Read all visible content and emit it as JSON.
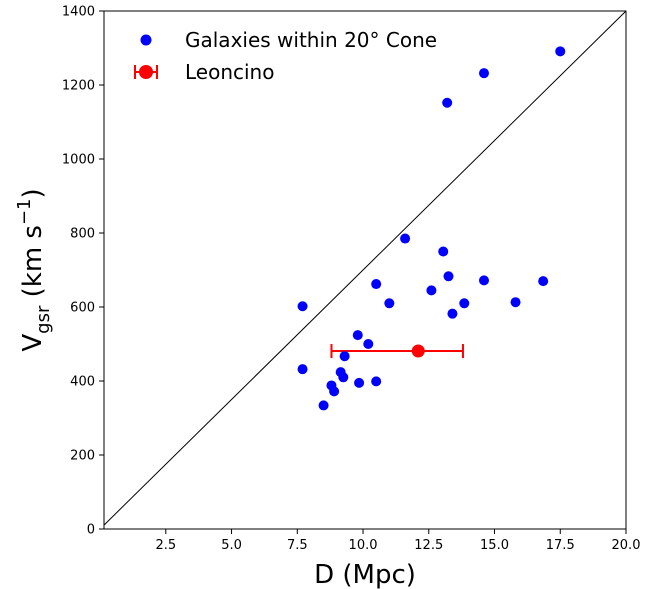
{
  "chart_data": {
    "type": "scatter",
    "xlabel": "D (Mpc)",
    "ylabel_main": "V",
    "ylabel_sub": "gsr",
    "ylabel_units": " (km s",
    "ylabel_exp": "−1",
    "ylabel_close": ")",
    "xlim": [
      0.15,
      20.0
    ],
    "ylim": [
      0,
      1400
    ],
    "xticks": [
      2.5,
      5.0,
      7.5,
      10.0,
      12.5,
      15.0,
      17.5,
      20.0
    ],
    "xtick_labels": [
      "2.5",
      "5.0",
      "7.5",
      "10.0",
      "12.5",
      "15.0",
      "17.5",
      "20.0"
    ],
    "yticks": [
      0,
      200,
      400,
      600,
      800,
      1000,
      1200,
      1400
    ],
    "ytick_labels": [
      "0",
      "200",
      "400",
      "600",
      "800",
      "1000",
      "1200",
      "1400"
    ],
    "grid": false,
    "legend_position": "top-left",
    "reference_line": {
      "from": [
        0,
        0
      ],
      "to": [
        20,
        1400
      ],
      "color": "#000000"
    },
    "series": [
      {
        "name": "Galaxies within 20° Cone",
        "color": "#0000ff",
        "points": [
          [
            7.7,
            602
          ],
          [
            7.7,
            432
          ],
          [
            8.5,
            334
          ],
          [
            8.8,
            388
          ],
          [
            8.9,
            372
          ],
          [
            9.15,
            424
          ],
          [
            9.25,
            410
          ],
          [
            9.3,
            467
          ],
          [
            9.8,
            524
          ],
          [
            9.85,
            395
          ],
          [
            10.2,
            500
          ],
          [
            10.5,
            399
          ],
          [
            10.5,
            662
          ],
          [
            11.0,
            610
          ],
          [
            11.6,
            785
          ],
          [
            12.6,
            645
          ],
          [
            13.05,
            750
          ],
          [
            13.2,
            1152
          ],
          [
            13.25,
            683
          ],
          [
            13.4,
            582
          ],
          [
            13.85,
            610
          ],
          [
            14.6,
            672
          ],
          [
            14.6,
            1232
          ],
          [
            15.8,
            613
          ],
          [
            16.85,
            670
          ],
          [
            17.5,
            1291
          ]
        ]
      },
      {
        "name": "Leoncino",
        "color": "#ff0000",
        "points": [
          [
            12.1,
            481
          ]
        ],
        "xerr": [
          [
            8.8,
            13.8
          ]
        ]
      }
    ]
  }
}
